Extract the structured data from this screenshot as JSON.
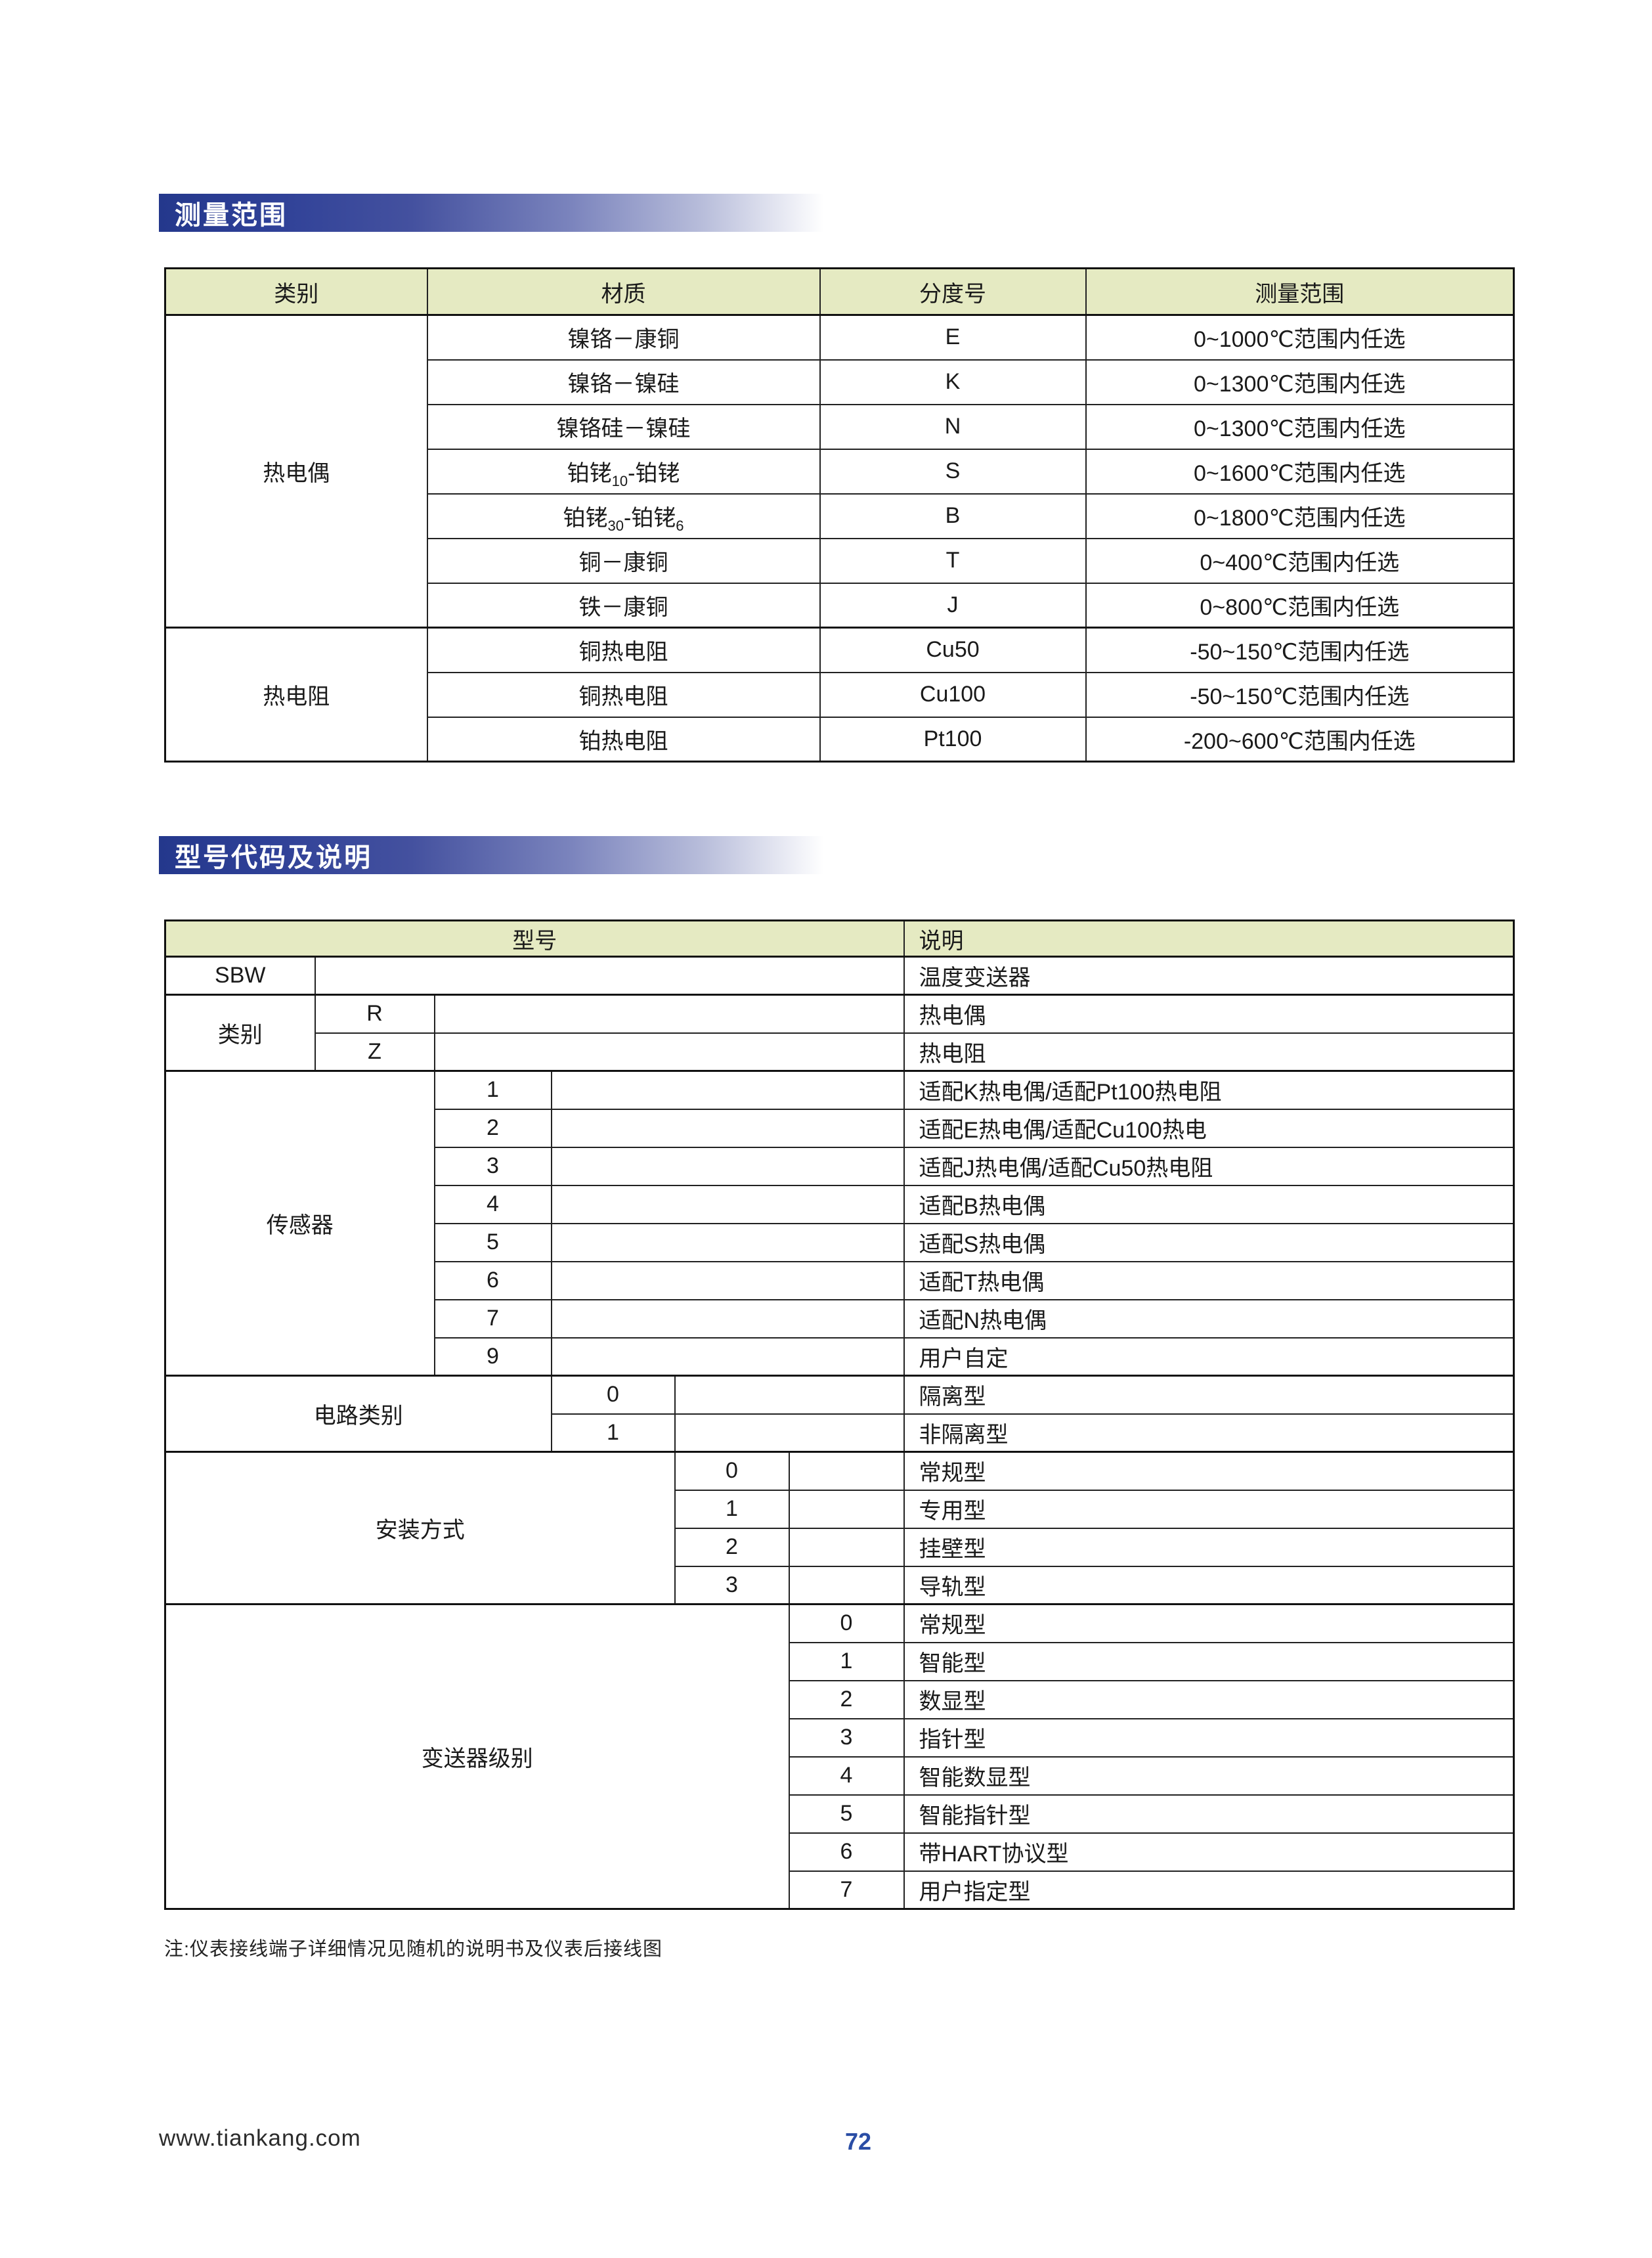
{
  "banners": {
    "measurement": "测量范围",
    "model": "型号代码及说明"
  },
  "measurement_table": {
    "headers": [
      "类别",
      "材质",
      "分度号",
      "测量范围"
    ],
    "groups": [
      {
        "category": "热电偶",
        "rows": [
          {
            "material": [
              "镍铬－康铜"
            ],
            "index": "E",
            "range": "0~1000℃范围内任选"
          },
          {
            "material": [
              "镍铬－镍硅"
            ],
            "index": "K",
            "range": "0~1300℃范围内任选"
          },
          {
            "material": [
              "镍铬硅－镍硅"
            ],
            "index": "N",
            "range": "0~1300℃范围内任选"
          },
          {
            "material": [
              "铂铑",
              {
                "sub": "10"
              },
              "-铂铑"
            ],
            "index": "S",
            "range": "0~1600℃范围内任选"
          },
          {
            "material": [
              "铂铑",
              {
                "sub": "30"
              },
              "-铂铑",
              {
                "sub": "6"
              }
            ],
            "index": "B",
            "range": "0~1800℃范围内任选"
          },
          {
            "material": [
              "铜－康铜"
            ],
            "index": "T",
            "range": "0~400℃范围内任选"
          },
          {
            "material": [
              "铁－康铜"
            ],
            "index": "J",
            "range": "0~800℃范围内任选"
          }
        ]
      },
      {
        "category": "热电阻",
        "rows": [
          {
            "material": [
              "铜热电阻"
            ],
            "index": "Cu50",
            "range": "-50~150℃范围内任选"
          },
          {
            "material": [
              "铜热电阻"
            ],
            "index": "Cu100",
            "range": "-50~150℃范围内任选"
          },
          {
            "material": [
              "铂热电阻"
            ],
            "index": "Pt100",
            "range": "-200~600℃范围内任选"
          }
        ]
      }
    ]
  },
  "model_table": {
    "headers": {
      "model": "型号",
      "description": "说明"
    },
    "sections": [
      {
        "label": "SBW",
        "label_span": 1,
        "rows": [
          {
            "code": "",
            "desc": "温度变送器"
          }
        ]
      },
      {
        "label": "类别",
        "label_span": 1,
        "rows": [
          {
            "code": "R",
            "desc": "热电偶"
          },
          {
            "code": "Z",
            "desc": "热电阻"
          }
        ]
      },
      {
        "label": "传感器",
        "label_span": 2,
        "rows": [
          {
            "code": "1",
            "desc": "适配K热电偶/适配Pt100热电阻"
          },
          {
            "code": "2",
            "desc": "适配E热电偶/适配Cu100热电"
          },
          {
            "code": "3",
            "desc": "适配J热电偶/适配Cu50热电阻"
          },
          {
            "code": "4",
            "desc": "适配B热电偶"
          },
          {
            "code": "5",
            "desc": "适配S热电偶"
          },
          {
            "code": "6",
            "desc": "适配T热电偶"
          },
          {
            "code": "7",
            "desc": "适配N热电偶"
          },
          {
            "code": "9",
            "desc": "用户自定"
          }
        ]
      },
      {
        "label": "电路类别",
        "label_span": 3,
        "rows": [
          {
            "code": "0",
            "desc": "隔离型"
          },
          {
            "code": "1",
            "desc": "非隔离型"
          }
        ]
      },
      {
        "label": "安装方式",
        "label_span": 4,
        "rows": [
          {
            "code": "0",
            "desc": "常规型"
          },
          {
            "code": "1",
            "desc": "专用型"
          },
          {
            "code": "2",
            "desc": "挂壁型"
          },
          {
            "code": "3",
            "desc": "导轨型"
          }
        ]
      },
      {
        "label": "变送器级别",
        "label_span": 5,
        "rows": [
          {
            "code": "0",
            "desc": "常规型"
          },
          {
            "code": "1",
            "desc": "智能型"
          },
          {
            "code": "2",
            "desc": "数显型"
          },
          {
            "code": "3",
            "desc": "指针型"
          },
          {
            "code": "4",
            "desc": "智能数显型"
          },
          {
            "code": "5",
            "desc": "智能指针型"
          },
          {
            "code": "6",
            "desc": "带HART协议型"
          },
          {
            "code": "7",
            "desc": "用户指定型"
          }
        ]
      }
    ]
  },
  "note": "注:仪表接线端子详细情况见随机的说明书及仪表后接线图",
  "footer": {
    "website": "www.tiankang.com",
    "page_number": "72"
  },
  "colors": {
    "header_bg": "#e5eac2",
    "banner_dark": "#24388c",
    "page_number_blue": "#2a4da5"
  }
}
